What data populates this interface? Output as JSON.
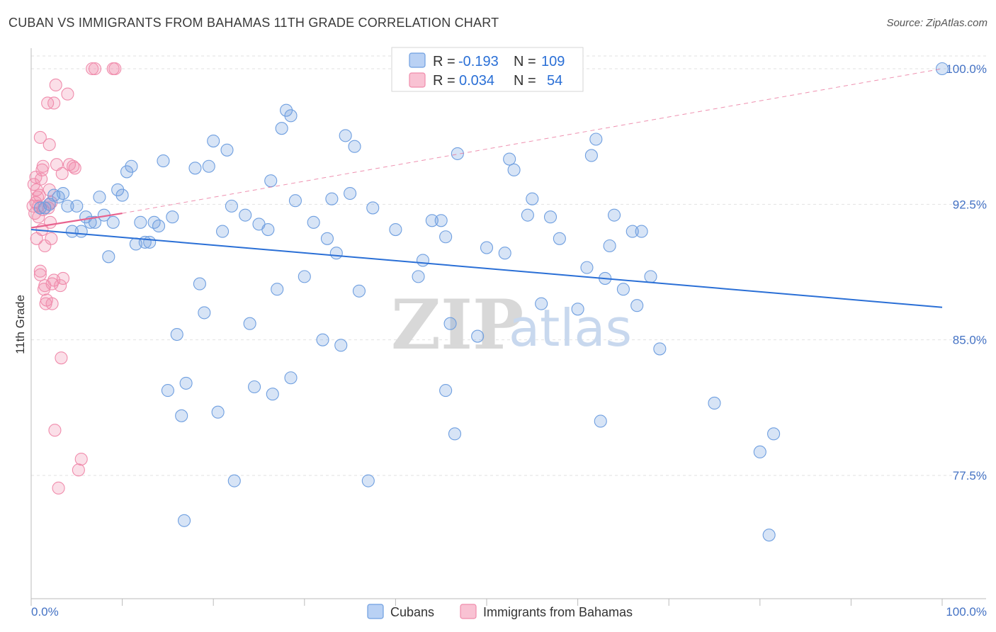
{
  "title": "CUBAN VS IMMIGRANTS FROM BAHAMAS 11TH GRADE CORRELATION CHART",
  "source": "Source: ZipAtlas.com",
  "watermark": {
    "zip": "ZIP",
    "atlas": "atlas"
  },
  "legend": {
    "rows": [
      {
        "r_label": "R =",
        "r_value": "-0.193",
        "n_label": "N =",
        "n_value": "109"
      },
      {
        "r_label": "R =",
        "r_value": "0.034",
        "n_label": "N =",
        "n_value": "54"
      }
    ]
  },
  "bottom_legend": [
    "Cubans",
    "Immigrants from Bahamas"
  ],
  "chart_data": {
    "type": "scatter",
    "title": "CUBAN VS IMMIGRANTS FROM BAHAMAS 11TH GRADE CORRELATION CHART",
    "xlabel": "",
    "ylabel": "11th Grade",
    "xlim": [
      0,
      100
    ],
    "ylim": [
      70.5,
      101.5
    ],
    "x_tick_labels": [
      "0.0%",
      "100.0%"
    ],
    "y_ticks": [
      77.5,
      85.0,
      92.5,
      100.0
    ],
    "y_tick_labels": [
      "77.5%",
      "85.0%",
      "92.5%",
      "100.0%"
    ],
    "grid": true,
    "colors": {
      "Cubans": "#6f9fe0",
      "Immigrants from Bahamas": "#f08cac",
      "cuban_line": "#2a6fd6",
      "bahamas_line": "#e8638f"
    },
    "series": [
      {
        "name": "Cubans",
        "R": -0.193,
        "N": 109,
        "trend": {
          "x": [
            0,
            100
          ],
          "y": [
            91.1,
            86.8
          ]
        },
        "points": [
          [
            1,
            92.3
          ],
          [
            1.5,
            92.3
          ],
          [
            2,
            92.5
          ],
          [
            2.5,
            93.0
          ],
          [
            3,
            92.9
          ],
          [
            3.5,
            93.1
          ],
          [
            4,
            92.4
          ],
          [
            4.5,
            91.0
          ],
          [
            5,
            92.4
          ],
          [
            5.5,
            91.0
          ],
          [
            6,
            91.8
          ],
          [
            6.5,
            91.5
          ],
          [
            7,
            91.5
          ],
          [
            7.5,
            92.9
          ],
          [
            8,
            91.9
          ],
          [
            8.5,
            89.6
          ],
          [
            9,
            91.5
          ],
          [
            9.5,
            93.3
          ],
          [
            10,
            93.0
          ],
          [
            10.5,
            94.3
          ],
          [
            11,
            94.6
          ],
          [
            11.5,
            90.3
          ],
          [
            12,
            91.5
          ],
          [
            12.5,
            90.4
          ],
          [
            13,
            90.4
          ],
          [
            13.5,
            91.5
          ],
          [
            14,
            91.3
          ],
          [
            14.5,
            94.9
          ],
          [
            15,
            82.2
          ],
          [
            15.5,
            91.8
          ],
          [
            16,
            85.3
          ],
          [
            16.5,
            80.8
          ],
          [
            16.8,
            75.0
          ],
          [
            17,
            82.6
          ],
          [
            18,
            94.5
          ],
          [
            18.5,
            88.1
          ],
          [
            19,
            86.5
          ],
          [
            19.5,
            94.6
          ],
          [
            20,
            96.0
          ],
          [
            20.5,
            81.0
          ],
          [
            21,
            91.0
          ],
          [
            21.5,
            95.5
          ],
          [
            22,
            92.4
          ],
          [
            22.3,
            77.2
          ],
          [
            23.5,
            91.9
          ],
          [
            24,
            85.9
          ],
          [
            24.5,
            82.4
          ],
          [
            25,
            91.4
          ],
          [
            26,
            91.1
          ],
          [
            26.3,
            93.8
          ],
          [
            26.5,
            82.0
          ],
          [
            27,
            87.8
          ],
          [
            27.5,
            96.7
          ],
          [
            28,
            97.7
          ],
          [
            28.5,
            97.4
          ],
          [
            28.5,
            82.9
          ],
          [
            29,
            92.7
          ],
          [
            30,
            88.5
          ],
          [
            31,
            91.5
          ],
          [
            32,
            85.0
          ],
          [
            32.5,
            90.6
          ],
          [
            33,
            92.8
          ],
          [
            33.5,
            89.8
          ],
          [
            34,
            84.7
          ],
          [
            34.5,
            96.3
          ],
          [
            35,
            93.1
          ],
          [
            35.5,
            95.7
          ],
          [
            36,
            87.7
          ],
          [
            37,
            77.2
          ],
          [
            37.5,
            92.3
          ],
          [
            40,
            91.1
          ],
          [
            42.5,
            88.5
          ],
          [
            43,
            89.4
          ],
          [
            44,
            91.6
          ],
          [
            45,
            91.6
          ],
          [
            45.5,
            90.7
          ],
          [
            45.5,
            82.2
          ],
          [
            46,
            85.9
          ],
          [
            46.5,
            79.8
          ],
          [
            46.8,
            95.3
          ],
          [
            49,
            85.2
          ],
          [
            50,
            90.1
          ],
          [
            52,
            89.8
          ],
          [
            52.5,
            95.0
          ],
          [
            53,
            94.4
          ],
          [
            54.5,
            91.9
          ],
          [
            55,
            92.8
          ],
          [
            56,
            87.0
          ],
          [
            57,
            91.8
          ],
          [
            58,
            90.6
          ],
          [
            60,
            86.7
          ],
          [
            61,
            89.0
          ],
          [
            61.5,
            95.2
          ],
          [
            62,
            96.1
          ],
          [
            62.5,
            80.5
          ],
          [
            63,
            88.4
          ],
          [
            63.5,
            90.2
          ],
          [
            64,
            91.9
          ],
          [
            65,
            87.8
          ],
          [
            66,
            91.0
          ],
          [
            66.5,
            86.9
          ],
          [
            67,
            91.0
          ],
          [
            68,
            88.5
          ],
          [
            69,
            84.5
          ],
          [
            75,
            81.5
          ],
          [
            80,
            78.8
          ],
          [
            81,
            74.2
          ],
          [
            81.5,
            79.8
          ],
          [
            100,
            100.0
          ]
        ]
      },
      {
        "name": "Immigrants from Bahamas",
        "R": 0.034,
        "N": 54,
        "trend": {
          "x": [
            0,
            10
          ],
          "y": [
            91.2,
            92.0
          ]
        },
        "points": [
          [
            0.2,
            92.4
          ],
          [
            0.3,
            93.6
          ],
          [
            0.4,
            92.0
          ],
          [
            0.5,
            94.0
          ],
          [
            0.5,
            92.6
          ],
          [
            0.6,
            93.3
          ],
          [
            0.6,
            90.6
          ],
          [
            0.7,
            92.9
          ],
          [
            0.8,
            92.4
          ],
          [
            0.8,
            91.8
          ],
          [
            0.9,
            93.0
          ],
          [
            1,
            96.2
          ],
          [
            1,
            88.6
          ],
          [
            1,
            88.8
          ],
          [
            1.1,
            93.9
          ],
          [
            1.2,
            91.1
          ],
          [
            1.2,
            94.4
          ],
          [
            1.3,
            94.6
          ],
          [
            1.3,
            92.2
          ],
          [
            1.4,
            87.8
          ],
          [
            1.5,
            88.0
          ],
          [
            1.5,
            90.2
          ],
          [
            1.6,
            87.0
          ],
          [
            1.7,
            87.2
          ],
          [
            1.8,
            98.1
          ],
          [
            1.9,
            92.3
          ],
          [
            2,
            95.8
          ],
          [
            2,
            93.3
          ],
          [
            2,
            92.5
          ],
          [
            2.1,
            91.5
          ],
          [
            2.2,
            92.6
          ],
          [
            2.2,
            90.6
          ],
          [
            2.3,
            88.1
          ],
          [
            2.3,
            87.0
          ],
          [
            2.5,
            98.1
          ],
          [
            2.5,
            88.3
          ],
          [
            2.6,
            80.0
          ],
          [
            2.7,
            99.1
          ],
          [
            2.8,
            94.7
          ],
          [
            3,
            76.8
          ],
          [
            3.2,
            88.0
          ],
          [
            3.3,
            84.0
          ],
          [
            3.4,
            94.2
          ],
          [
            3.5,
            88.4
          ],
          [
            4,
            98.6
          ],
          [
            4.2,
            94.7
          ],
          [
            4.6,
            94.6
          ],
          [
            4.8,
            94.5
          ],
          [
            5.2,
            77.8
          ],
          [
            5.5,
            78.4
          ],
          [
            6.7,
            100.0
          ],
          [
            7,
            100.0
          ],
          [
            9,
            100.0
          ],
          [
            9.2,
            100.0
          ]
        ]
      }
    ]
  }
}
